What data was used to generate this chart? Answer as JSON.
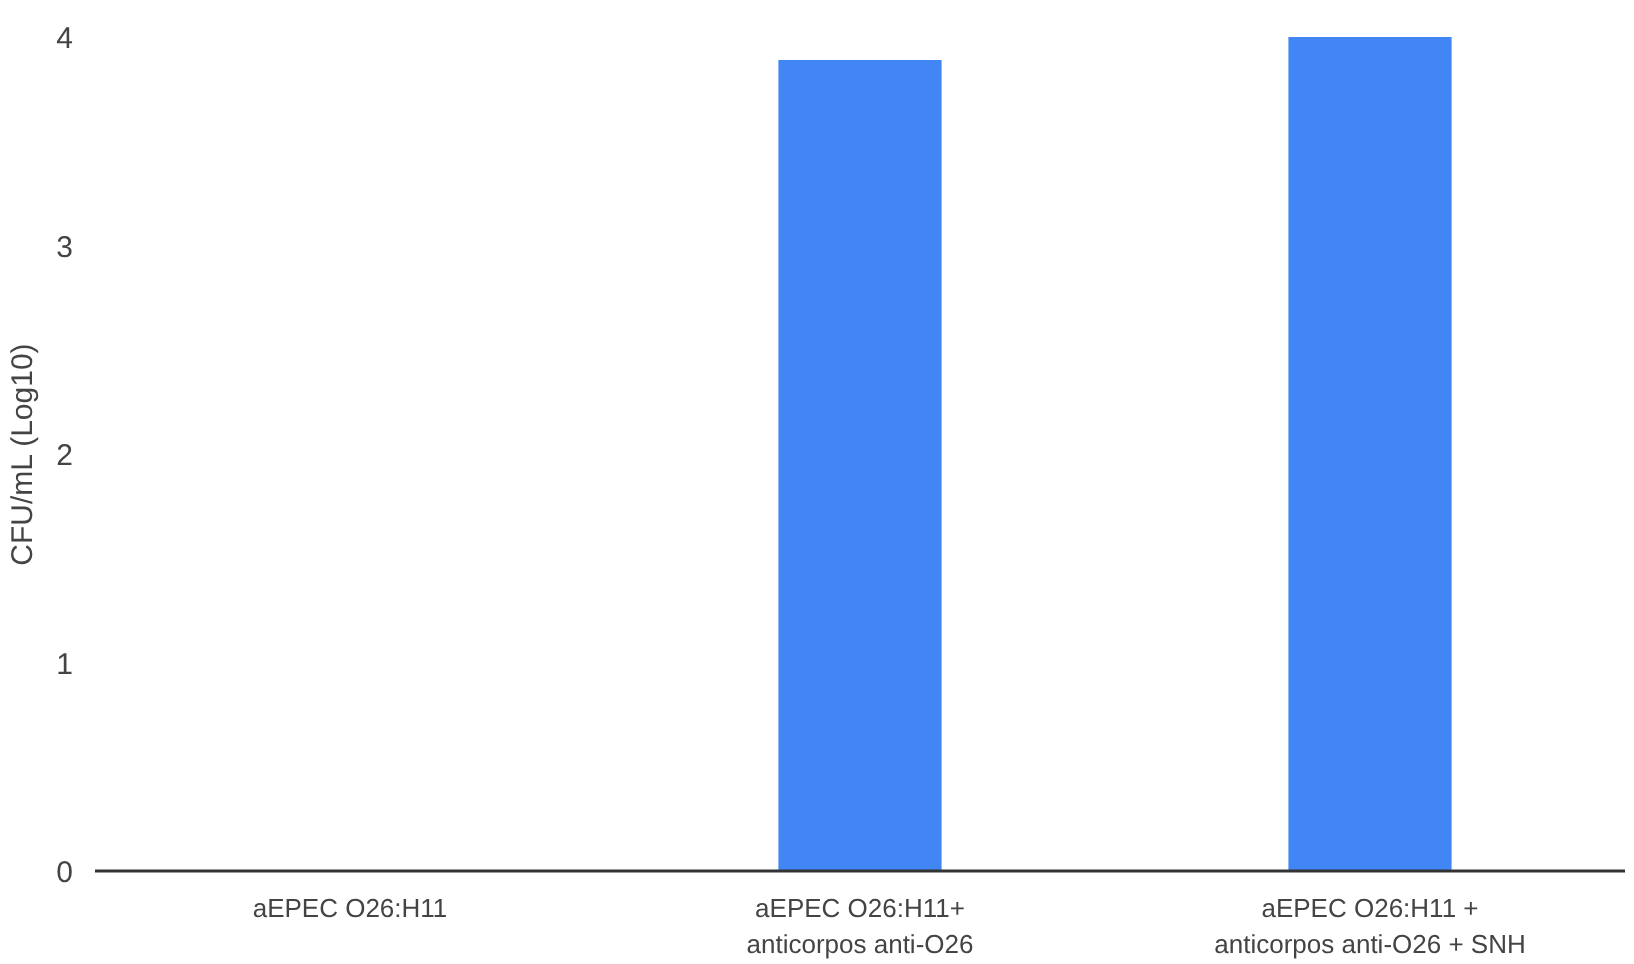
{
  "chart_data": {
    "type": "bar",
    "ylabel": "CFU/mL (Log10)",
    "categories": [
      "aEPEC O26:H11",
      "aEPEC O26:H11+\nanticorpos anti-O26",
      "aEPEC O26:H11 +\nanticorpos anti-O26 + SNH"
    ],
    "values": [
      0,
      3.89,
      4.0
    ],
    "color": "#4285f4",
    "ylim": [
      0,
      4
    ],
    "yticks": [
      0,
      1,
      2,
      3,
      4
    ],
    "grid": false
  }
}
